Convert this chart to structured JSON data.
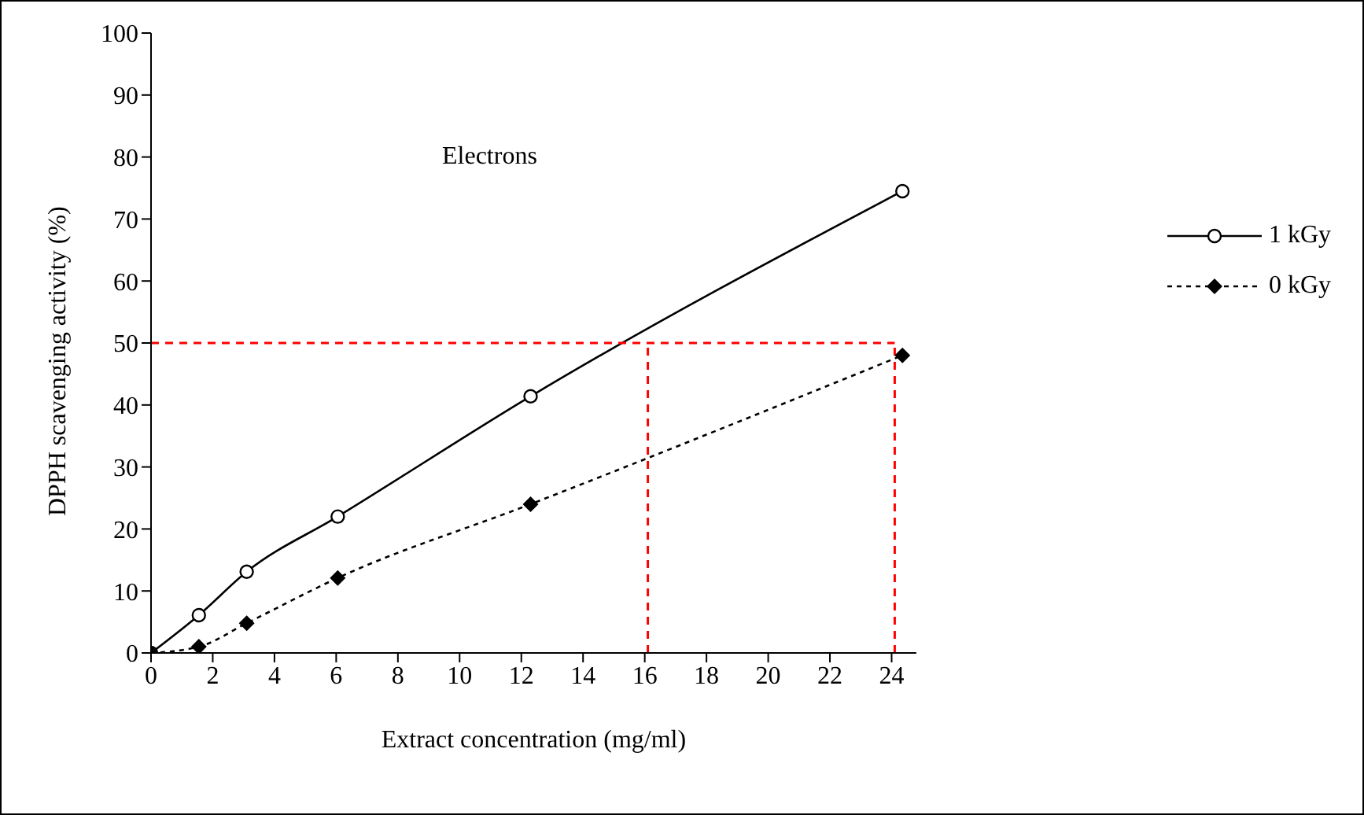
{
  "chart_data": {
    "type": "line",
    "xlabel": "Extract concentration (mg/ml)",
    "ylabel": "DPPH scavenging activity (%)",
    "annotations": [
      "Electrons"
    ],
    "xlim": [
      0,
      24.8
    ],
    "xticks": [
      0,
      2,
      4,
      6,
      8,
      10,
      12,
      14,
      16,
      18,
      20,
      22,
      24
    ],
    "ylim": [
      0,
      100
    ],
    "yticks": [
      0,
      10,
      20,
      30,
      40,
      50,
      60,
      70,
      80,
      90,
      100
    ],
    "legend": "right",
    "series": [
      {
        "name": "1 kGy",
        "color": "#000000",
        "marker": "circle",
        "line_style": "solid",
        "x": [
          0,
          1.55,
          3.1,
          6.05,
          12.3,
          24.35
        ],
        "values": [
          0,
          6.1,
          13.1,
          22,
          41.4,
          74.5
        ]
      },
      {
        "name": "0 kGy",
        "color": "#000000",
        "marker": "diamond",
        "line_style": "dotted",
        "x": [
          0,
          1.55,
          3.1,
          6.05,
          12.3,
          24.35
        ],
        "values": [
          0,
          1,
          4.8,
          12.1,
          24,
          48
        ]
      }
    ],
    "ref_lines": [
      {
        "axis": "y",
        "value": 50,
        "color": "#ff0000",
        "line_style": "dashed"
      },
      {
        "axis": "x",
        "value": 16.1,
        "color": "#ff0000",
        "line_style": "dashed"
      },
      {
        "axis": "x",
        "value": 24.1,
        "color": "#ff0000",
        "line_style": "dashed"
      }
    ]
  }
}
